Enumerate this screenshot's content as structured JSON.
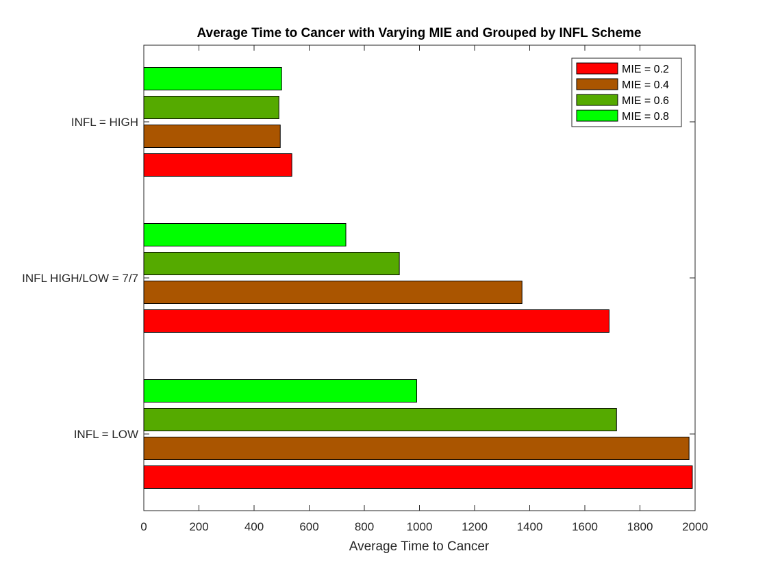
{
  "chart_data": {
    "type": "bar",
    "orientation": "horizontal",
    "title": "Average Time to Cancer with Varying MIE and Grouped by INFL Scheme",
    "xlabel": "Average Time to Cancer",
    "ylabel": "",
    "xlim": [
      0,
      2000
    ],
    "xticks": [
      0,
      200,
      400,
      600,
      800,
      1000,
      1200,
      1400,
      1600,
      1800,
      2000
    ],
    "categories": [
      "INFL = LOW",
      "INFL HIGH/LOW = 7/7",
      "INFL = HIGH"
    ],
    "series": [
      {
        "name": "MIE = 0.2",
        "color": "#ff0000",
        "values": [
          1990,
          1688,
          537
        ]
      },
      {
        "name": "MIE = 0.4",
        "color": "#aa5500",
        "values": [
          1978,
          1372,
          495
        ]
      },
      {
        "name": "MIE = 0.6",
        "color": "#55aa00",
        "values": [
          1715,
          927,
          490
        ]
      },
      {
        "name": "MIE = 0.8",
        "color": "#00ff00",
        "values": [
          990,
          733,
          500
        ]
      }
    ],
    "grid": false,
    "legend_position": "top-right"
  }
}
